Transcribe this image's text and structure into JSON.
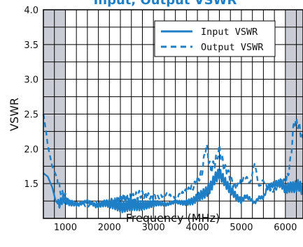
{
  "chart_data": {
    "type": "line",
    "title": "Input, Output VSWR",
    "xlabel": "Frequency (MHz)",
    "ylabel": "VSWR",
    "xlim": [
      500,
      6400
    ],
    "ylim": [
      1.0,
      4.0
    ],
    "x_ticks": [
      1000,
      2000,
      3000,
      4000,
      5000,
      6000
    ],
    "y_ticks": [
      1.5,
      2.0,
      2.5,
      3.0,
      3.5,
      4.0
    ],
    "y_tick_labels": [
      "1.5",
      "2.0",
      "2.5",
      "3.0",
      "3.5",
      "4.0"
    ],
    "grid": true,
    "legend_position": "top-right",
    "shaded_regions": [
      [
        500,
        1000
      ],
      [
        6000,
        6400
      ]
    ],
    "series": [
      {
        "name": "Input VSWR",
        "style": "solid",
        "color": "#1f7fc6",
        "x": [
          500,
          600,
          700,
          780,
          850,
          950,
          1100,
          1300,
          1500,
          1700,
          1900,
          2100,
          2300,
          2500,
          2700,
          2900,
          3100,
          3300,
          3500,
          3700,
          3900,
          4000,
          4100,
          4200,
          4300,
          4400,
          4500,
          4600,
          4700,
          4800,
          4900,
          5000,
          5100,
          5200,
          5300,
          5400,
          5500,
          5600,
          5700,
          5800,
          5900,
          6000,
          6100,
          6200,
          6300,
          6400
        ],
        "y": [
          1.65,
          1.6,
          1.45,
          1.25,
          1.2,
          1.28,
          1.22,
          1.2,
          1.25,
          1.18,
          1.22,
          1.2,
          1.16,
          1.2,
          1.18,
          1.2,
          1.22,
          1.2,
          1.24,
          1.22,
          1.25,
          1.3,
          1.34,
          1.38,
          1.45,
          1.58,
          1.65,
          1.55,
          1.45,
          1.38,
          1.3,
          1.25,
          1.32,
          1.28,
          1.22,
          1.3,
          1.3,
          1.45,
          1.48,
          1.5,
          1.5,
          1.42,
          1.45,
          1.45,
          1.48,
          1.4
        ]
      },
      {
        "name": "Output VSWR",
        "style": "dashed",
        "color": "#1f7fc6",
        "x": [
          500,
          550,
          600,
          700,
          800,
          900,
          1000,
          1100,
          1300,
          1500,
          1700,
          1900,
          2100,
          2300,
          2500,
          2700,
          2900,
          3100,
          3300,
          3500,
          3700,
          3900,
          4000,
          4100,
          4200,
          4300,
          4400,
          4500,
          4600,
          4700,
          4800,
          4900,
          5000,
          5100,
          5200,
          5300,
          5400,
          5500,
          5600,
          5700,
          5800,
          5900,
          6000,
          6100,
          6200,
          6300,
          6400
        ],
        "y": [
          2.5,
          2.3,
          2.05,
          1.75,
          1.6,
          1.38,
          1.32,
          1.25,
          1.22,
          1.18,
          1.22,
          1.2,
          1.25,
          1.3,
          1.28,
          1.35,
          1.32,
          1.3,
          1.35,
          1.3,
          1.38,
          1.45,
          1.55,
          1.65,
          2.05,
          1.7,
          1.8,
          2.0,
          1.75,
          1.65,
          1.5,
          1.45,
          1.55,
          1.6,
          1.5,
          1.8,
          1.45,
          1.55,
          1.45,
          1.4,
          1.45,
          1.55,
          1.5,
          1.75,
          2.4,
          2.35,
          2.1
        ]
      }
    ]
  }
}
